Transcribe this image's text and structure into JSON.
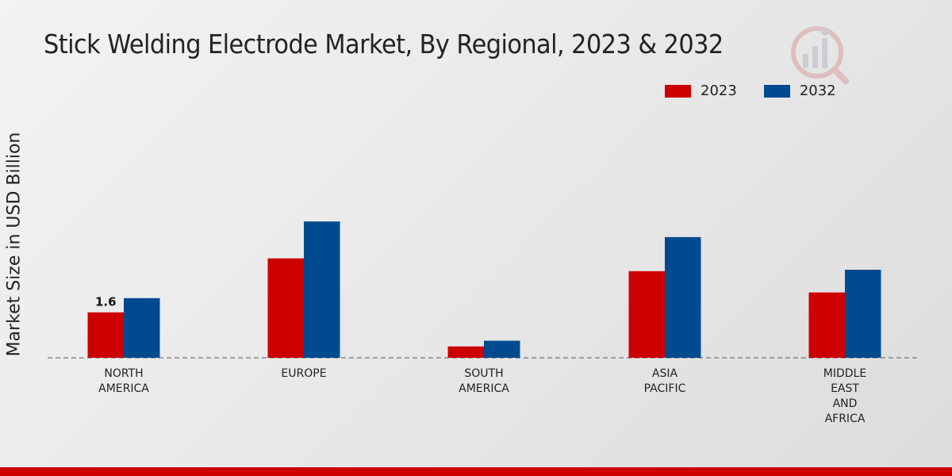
{
  "chart_data": {
    "type": "bar",
    "title": "Stick Welding Electrode Market, By Regional, 2023 & 2032",
    "xlabel": "",
    "ylabel": "Market Size in USD Billion",
    "categories": [
      "NORTH\nAMERICA",
      "EUROPE",
      "SOUTH\nAMERICA",
      "ASIA\nPACIFIC",
      "MIDDLE\nEAST\nAND\nAFRICA"
    ],
    "series": [
      {
        "name": "2023",
        "color": "#cc0000",
        "values": [
          1.6,
          3.5,
          0.4,
          3.05,
          2.3
        ]
      },
      {
        "name": "2032",
        "color": "#004a8f",
        "values": [
          2.1,
          4.8,
          0.6,
          4.25,
          3.1
        ]
      }
    ],
    "data_labels": [
      {
        "series": 0,
        "category": 0,
        "text": "1.6"
      }
    ],
    "ylim": [
      0,
      6.0
    ],
    "grid": false,
    "legend": "top-right"
  },
  "colors": {
    "accent": "#cc0000",
    "secondary": "#004a8f",
    "bottom_bar": "#cc0000"
  },
  "logo_icon": "market-research-logo-icon"
}
